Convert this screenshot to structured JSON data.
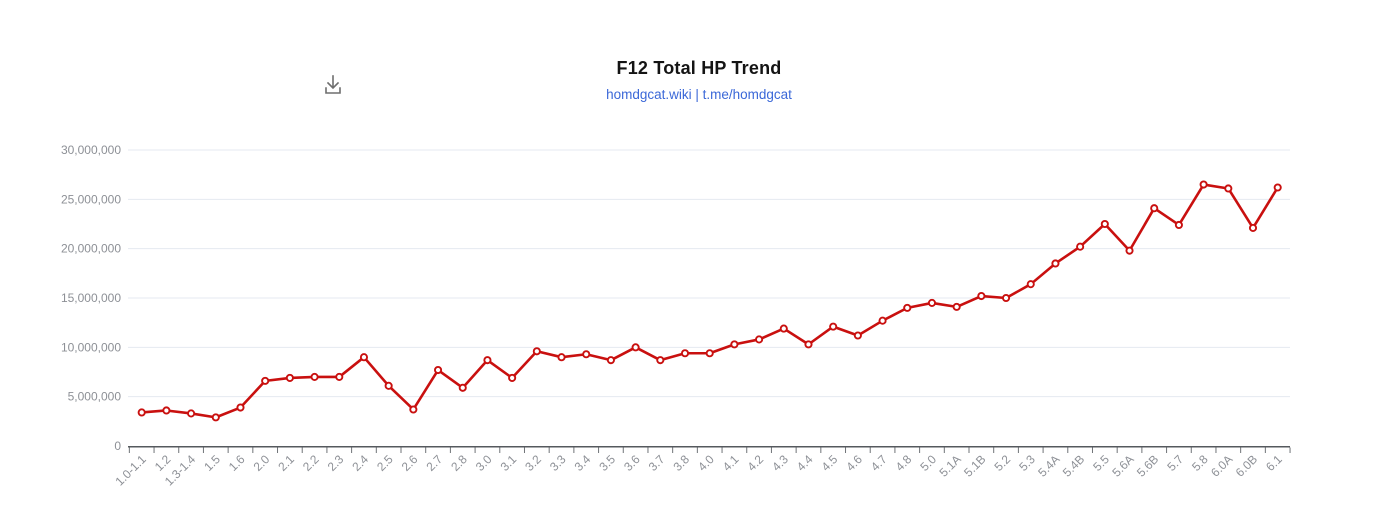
{
  "toolbar": {
    "download_tooltip": "Download"
  },
  "chart_data": {
    "type": "line",
    "title": "F12 Total HP Trend",
    "subtitle": "homdgcat.wiki | t.me/homdgcat",
    "categories": [
      "1.0-1.1",
      "1.2",
      "1.3-1.4",
      "1.5",
      "1.6",
      "2.0",
      "2.1",
      "2.2",
      "2.3",
      "2.4",
      "2.5",
      "2.6",
      "2.7",
      "2.8",
      "3.0",
      "3.1",
      "3.2",
      "3.3",
      "3.4",
      "3.5",
      "3.6",
      "3.7",
      "3.8",
      "4.0",
      "4.1",
      "4.2",
      "4.3",
      "4.4",
      "4.5",
      "4.6",
      "4.7",
      "4.8",
      "5.0",
      "5.1A",
      "5.1B",
      "5.2",
      "5.3",
      "5.4A",
      "5.4B",
      "5.5",
      "5.6A",
      "5.6B",
      "5.7",
      "5.8",
      "6.0A",
      "6.0B",
      "6.1"
    ],
    "values": [
      3400000,
      3600000,
      3300000,
      2900000,
      3900000,
      6600000,
      6900000,
      7000000,
      7000000,
      9000000,
      6100000,
      3700000,
      7700000,
      5900000,
      8700000,
      6900000,
      9600000,
      9000000,
      9300000,
      8700000,
      10000000,
      8700000,
      9400000,
      9400000,
      10300000,
      10800000,
      11900000,
      10300000,
      12100000,
      11200000,
      12700000,
      14000000,
      14500000,
      14100000,
      15200000,
      15000000,
      16400000,
      18500000,
      20200000,
      22500000,
      19800000,
      24100000,
      22400000,
      26500000,
      26100000,
      22100000,
      26200000
    ],
    "xlabel": "",
    "ylabel": "",
    "ylim": [
      0,
      30000000
    ],
    "y_tick_step": 5000000,
    "y_tick_labels": [
      "0",
      "5,000,000",
      "10,000,000",
      "15,000,000",
      "20,000,000",
      "25,000,000",
      "30,000,000"
    ],
    "grid": true,
    "legend": "none",
    "x_label_rotation": -45,
    "colors": {
      "line": "#c9100f",
      "marker_fill": "#ffffff",
      "grid": "#e4eaf1",
      "axis": "#55595e",
      "tick": "#6f7377",
      "tick_label": "#8d9096",
      "title": "#141414",
      "subtitle": "#3b68d8",
      "icon": "#6e6e6e"
    }
  }
}
